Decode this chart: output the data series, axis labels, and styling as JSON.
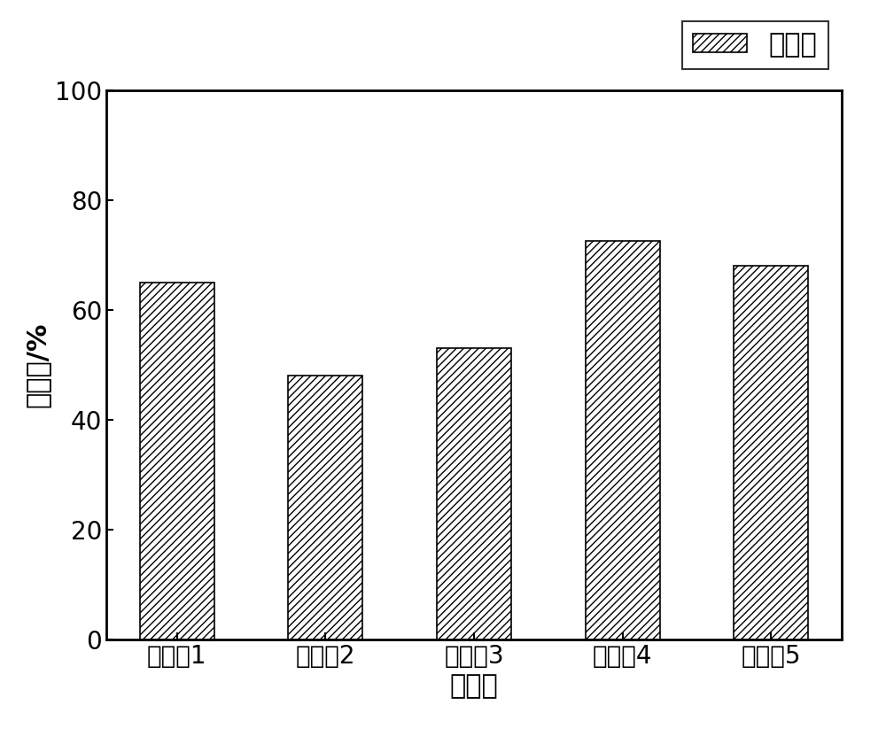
{
  "categories": [
    "降粘劑1",
    "降粘劑2",
    "降粘劑3",
    "降粘劑4",
    "降粘劑5"
  ],
  "values": [
    65.0,
    48.0,
    53.0,
    72.5,
    68.0
  ],
  "xlabel": "降粘劑",
  "ylabel": "降粘率/%",
  "legend_label": "降粘率",
  "ylim": [
    0,
    100
  ],
  "yticks": [
    0,
    20,
    40,
    60,
    80,
    100
  ],
  "bar_color": "white",
  "bar_edgecolor": "black",
  "hatch": "////",
  "bar_width": 0.5,
  "xlabel_fontsize": 22,
  "ylabel_fontsize": 22,
  "tick_fontsize": 20,
  "legend_fontsize": 22,
  "background_color": "white",
  "figure_facecolor": "white"
}
